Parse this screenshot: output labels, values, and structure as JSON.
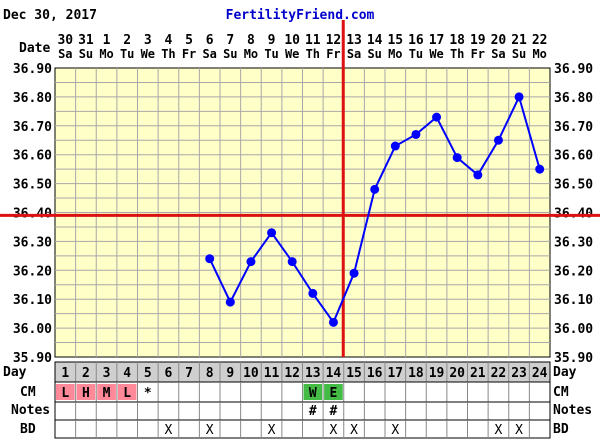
{
  "header": {
    "chart_date": "Dec 30, 2017",
    "site": "FertilityFriend.com",
    "site_color": "#0000cc"
  },
  "row_labels": {
    "date": "Date",
    "day": "Day",
    "cm": "CM",
    "notes": "Notes",
    "bd": "BD"
  },
  "colors": {
    "grid_bg": "#ffffc8",
    "grid_line": "#a8a8a8",
    "temp_line": "#0000ff",
    "coverline": "#dd1111",
    "menses": "#ff8899",
    "egg_white": "#44bb44",
    "day_row_bg": "#cfcfcf"
  },
  "chart_data": {
    "type": "line",
    "title": "",
    "xlabel": "Day",
    "ylabel": "",
    "ylim": [
      35.9,
      36.9
    ],
    "y_ticks": [
      "35.90",
      "36.00",
      "36.10",
      "36.20",
      "36.30",
      "36.40",
      "36.50",
      "36.60",
      "36.70",
      "36.80",
      "36.90"
    ],
    "days": [
      1,
      2,
      3,
      4,
      5,
      6,
      7,
      8,
      9,
      10,
      11,
      12,
      13,
      14,
      15,
      16,
      17,
      18,
      19,
      20,
      21,
      22,
      23,
      24
    ],
    "dates": [
      "30",
      "31",
      "1",
      "2",
      "3",
      "4",
      "5",
      "6",
      "7",
      "8",
      "9",
      "10",
      "11",
      "12",
      "13",
      "14",
      "15",
      "16",
      "17",
      "18",
      "19",
      "20",
      "21",
      "22"
    ],
    "weekdays": [
      "Sa",
      "Su",
      "Mo",
      "Tu",
      "We",
      "Th",
      "Fr",
      "Sa",
      "Su",
      "Mo",
      "Tu",
      "We",
      "Th",
      "Fr",
      "Sa",
      "Su",
      "Mo",
      "Tu",
      "We",
      "Th",
      "Fr",
      "Sa",
      "Su",
      "Mo"
    ],
    "series": [
      {
        "values": [
          null,
          null,
          null,
          null,
          null,
          null,
          null,
          36.24,
          36.09,
          36.23,
          36.33,
          36.23,
          36.12,
          36.02,
          36.19,
          36.48,
          36.63,
          36.67,
          36.73,
          36.59,
          36.53,
          36.65,
          36.8,
          36.55
        ]
      }
    ],
    "coverline": 36.39,
    "ovulation_day": 15,
    "cm": [
      {
        "day": 1,
        "code": "L",
        "kind": "menses"
      },
      {
        "day": 2,
        "code": "H",
        "kind": "menses"
      },
      {
        "day": 3,
        "code": "M",
        "kind": "menses"
      },
      {
        "day": 4,
        "code": "L",
        "kind": "menses"
      },
      {
        "day": 5,
        "code": "*",
        "kind": "plain"
      },
      {
        "day": 13,
        "code": "W",
        "kind": "egg_white"
      },
      {
        "day": 14,
        "code": "E",
        "kind": "egg_white"
      }
    ],
    "notes": [
      {
        "day": 13,
        "code": "#"
      },
      {
        "day": 14,
        "code": "#"
      }
    ],
    "bd": [
      {
        "day": 6,
        "code": "X"
      },
      {
        "day": 8,
        "code": "X"
      },
      {
        "day": 11,
        "code": "X"
      },
      {
        "day": 14,
        "code": "X"
      },
      {
        "day": 15,
        "code": "X"
      },
      {
        "day": 17,
        "code": "X"
      },
      {
        "day": 22,
        "code": "X"
      },
      {
        "day": 23,
        "code": "X"
      }
    ]
  }
}
